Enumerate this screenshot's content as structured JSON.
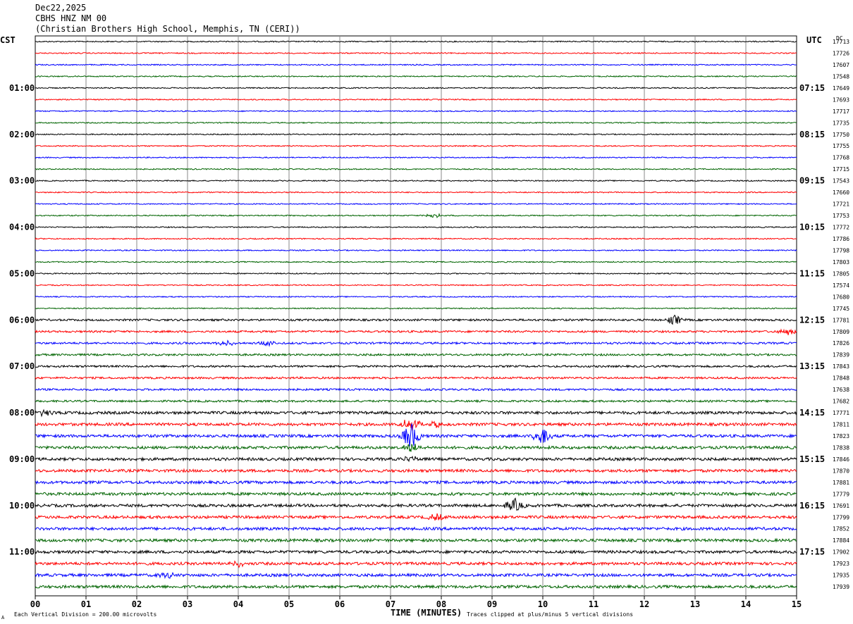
{
  "header": {
    "date": "Dec22,2025",
    "station": "CBHS HNZ NM 00",
    "location": "(Christian Brothers High School, Memphis, TN (CERI))"
  },
  "labels": {
    "left_zone": "CST",
    "right_zone": "UTC",
    "dc": "DC",
    "x_title": "TIME (MINUTES)",
    "footer_left": "Each Vertical Division =  200.00 microvolts",
    "footer_right": "Traces clipped at plus/minus 5 vertical divisions",
    "footer_mark": "A"
  },
  "colors": {
    "trace_cycle": [
      "#000000",
      "#ff0000",
      "#0000ff",
      "#006400"
    ]
  },
  "chart_data": {
    "type": "line",
    "xlabel": "TIME (MINUTES)",
    "xlim": [
      0,
      15
    ],
    "x_ticks": [
      "00",
      "01",
      "02",
      "03",
      "04",
      "05",
      "06",
      "07",
      "08",
      "09",
      "10",
      "11",
      "12",
      "13",
      "14",
      "15"
    ],
    "left_time_labels": [
      "01:00",
      "02:00",
      "03:00",
      "04:00",
      "05:00",
      "06:00",
      "07:00",
      "08:00",
      "09:00",
      "10:00",
      "11:00"
    ],
    "right_time_labels": [
      "07:15",
      "08:15",
      "09:15",
      "10:15",
      "11:15",
      "12:15",
      "13:15",
      "14:15",
      "15:15",
      "16:15",
      "17:15"
    ],
    "dc_offsets": [
      17713,
      17726,
      17607,
      17548,
      17649,
      17693,
      17717,
      17735,
      17750,
      17755,
      17768,
      17715,
      17543,
      17660,
      17721,
      17753,
      17772,
      17786,
      17798,
      17803,
      17805,
      17574,
      17680,
      17745,
      17781,
      17809,
      17826,
      17839,
      17843,
      17848,
      17638,
      17682,
      17771,
      17811,
      17823,
      17838,
      17846,
      17870,
      17881,
      17779,
      17691,
      17799,
      17852,
      17884,
      17902,
      17923,
      17935,
      17939
    ],
    "trace_count": 48,
    "events": [
      {
        "trace": 33,
        "minute": 7.4,
        "amp": 4.5
      },
      {
        "trace": 34,
        "minute": 7.4,
        "amp": 9.0
      },
      {
        "trace": 35,
        "minute": 7.4,
        "amp": 3.0
      },
      {
        "trace": 36,
        "minute": 7.4,
        "amp": 2.0
      },
      {
        "trace": 34,
        "minute": 10.0,
        "amp": 6.0
      },
      {
        "trace": 33,
        "minute": 7.9,
        "amp": 2.0
      },
      {
        "trace": 40,
        "minute": 9.45,
        "amp": 4.0
      },
      {
        "trace": 24,
        "minute": 12.6,
        "amp": 3.0
      },
      {
        "trace": 25,
        "minute": 14.8,
        "amp": 2.5
      },
      {
        "trace": 26,
        "minute": 3.75,
        "amp": 2.0
      },
      {
        "trace": 26,
        "minute": 4.6,
        "amp": 1.5
      },
      {
        "trace": 45,
        "minute": 4.0,
        "amp": 2.0
      },
      {
        "trace": 46,
        "minute": 2.6,
        "amp": 2.0
      },
      {
        "trace": 41,
        "minute": 7.9,
        "amp": 2.0
      },
      {
        "trace": 32,
        "minute": 0.2,
        "amp": 2.0
      },
      {
        "trace": 15,
        "minute": 7.85,
        "amp": 1.5
      }
    ]
  }
}
